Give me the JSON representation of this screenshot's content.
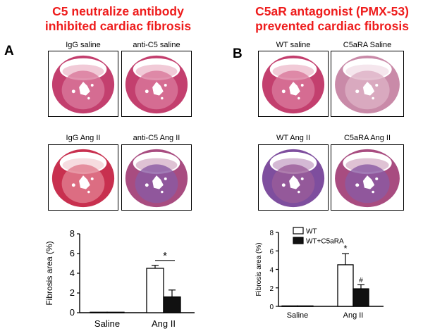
{
  "left": {
    "title_line1": "C5 neutralize antibody",
    "title_line2": "inhibited cardiac fibrosis",
    "panel_label": "A",
    "captions": [
      "IgG saline",
      "anti-C5 saline",
      "IgG Ang II",
      "anti-C5 Ang II"
    ]
  },
  "right": {
    "title_line1": "C5aR antagonist (PMX-53)",
    "title_line2": "prevented cardiac fibrosis",
    "panel_label": "B",
    "captions": [
      "WT saline",
      "C5aRA Saline",
      "WT Ang II",
      "C5aRA  Ang II"
    ]
  },
  "colors": {
    "title": "#ee1c1c",
    "tissue_pink": "#c03c6a",
    "tissue_purple": "#7a4e9c",
    "bar_filled": "#111111",
    "bar_open": "#ffffff"
  },
  "chart_data": [
    {
      "type": "bar",
      "categories": [
        "Saline",
        "Ang II"
      ],
      "ylabel": "Fibrosis area (%)",
      "ylim": [
        0,
        8
      ],
      "yticks": [
        "0",
        "2",
        "4",
        "6",
        "8"
      ],
      "series": [
        {
          "values": [
            0.05,
            4.5
          ],
          "errors": [
            0.05,
            0.3
          ],
          "fill": "open"
        },
        {
          "values": [
            0.05,
            1.6
          ],
          "errors": [
            0.05,
            0.7
          ],
          "fill": "filled"
        }
      ],
      "annotations": [
        {
          "text": "*",
          "category": "Ang II",
          "bracket": true
        }
      ],
      "legend": null
    },
    {
      "type": "bar",
      "categories": [
        "Saline",
        "Ang II"
      ],
      "ylabel": "Fibrosis area (%)",
      "ylim": [
        0,
        8
      ],
      "yticks": [
        "0",
        "2",
        "4",
        "6",
        "8"
      ],
      "series": [
        {
          "name": "WT",
          "values": [
            0.05,
            4.5
          ],
          "errors": [
            0.05,
            1.2
          ],
          "fill": "open"
        },
        {
          "name": "WT+C5aRA",
          "values": [
            0.05,
            1.9
          ],
          "errors": [
            0.05,
            0.45
          ],
          "fill": "filled"
        }
      ],
      "annotations": [
        {
          "text": "*",
          "category": "Ang II",
          "series": 0
        },
        {
          "text": "#",
          "category": "Ang II",
          "series": 1
        }
      ],
      "legend": "top-left"
    }
  ]
}
